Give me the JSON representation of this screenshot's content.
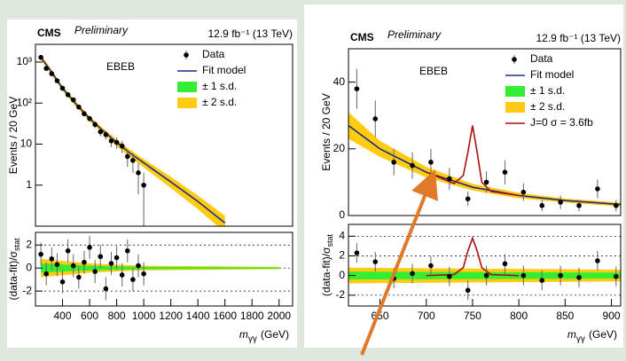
{
  "chart_data": [
    {
      "type": "scatter",
      "yscale": "log",
      "experiment": "CMS",
      "status": "Preliminary",
      "lumi": "12.9 fb⁻¹ (13 TeV)",
      "category": "EBEB",
      "ylabel": "Events / 20 GeV",
      "xlim": [
        200,
        2100
      ],
      "ylim": [
        0.1,
        2700
      ],
      "yticks": [
        1,
        10,
        {
          "value": 100,
          "label": "10²"
        },
        {
          "value": 1000,
          "label": "10³"
        }
      ],
      "legend": "upper right",
      "series": [
        {
          "name": "Data",
          "kind": "points",
          "color": "#000000",
          "x": [
            240,
            280,
            320,
            360,
            400,
            440,
            480,
            520,
            560,
            600,
            640,
            680,
            720,
            760,
            800,
            840,
            880,
            920,
            960,
            1000
          ],
          "values": [
            1300,
            700,
            520,
            350,
            230,
            160,
            120,
            80,
            55,
            42,
            30,
            20,
            17,
            12,
            11,
            9,
            5,
            4,
            2,
            1
          ],
          "errors": [
            36,
            26,
            23,
            19,
            15,
            13,
            11,
            9,
            7,
            6.5,
            5.5,
            4.5,
            4,
            3.5,
            3.3,
            3,
            2.2,
            2,
            1.4,
            1
          ]
        },
        {
          "name": "Fit model",
          "kind": "line",
          "color": "#1f2a8a",
          "x": [
            240,
            300,
            400,
            500,
            600,
            700,
            800,
            900,
            1000,
            1200,
            1400,
            1600
          ],
          "values": [
            1300,
            700,
            230,
            95,
            42,
            21,
            11,
            6.0,
            3.5,
            1.2,
            0.4,
            0.12
          ]
        },
        {
          "name": "± 1 s.d.",
          "kind": "band",
          "color": "#33ee33",
          "x": [
            240,
            300,
            400,
            500,
            600,
            700,
            800,
            900,
            1000,
            1200,
            1400,
            1600
          ],
          "lower": [
            1200,
            650,
            215,
            88,
            39,
            19.5,
            10,
            5.4,
            3.1,
            1.0,
            0.32,
            0.09
          ],
          "upper": [
            1400,
            750,
            245,
            102,
            45,
            22.5,
            12,
            6.6,
            3.9,
            1.4,
            0.48,
            0.15
          ]
        },
        {
          "name": "± 2 s.d.",
          "kind": "band",
          "color": "#ffcc11",
          "x": [
            240,
            300,
            400,
            500,
            600,
            700,
            800,
            900,
            1000,
            1200,
            1400,
            1600
          ],
          "lower": [
            1100,
            600,
            200,
            81,
            36,
            18,
            9,
            4.8,
            2.7,
            0.85,
            0.26,
            0.07
          ],
          "upper": [
            1500,
            800,
            260,
            109,
            48,
            24,
            13,
            7.2,
            4.3,
            1.6,
            0.56,
            0.18
          ]
        }
      ]
    },
    {
      "type": "scatter",
      "ylabel": "(data-fit)/σ",
      "ylabel_sub": "stat",
      "xlabel": "m",
      "xlabel_sub": "γγ",
      "xlabel_unit": "(GeV)",
      "xlim": [
        200,
        2100
      ],
      "xticks": [
        400,
        600,
        800,
        1000,
        1200,
        1400,
        1600,
        1800,
        2000
      ],
      "ylim": [
        -3.3,
        3.1
      ],
      "yticks": [
        -2,
        0,
        2
      ],
      "grid": true,
      "series": [
        {
          "kind": "band",
          "color": "#ffcc11",
          "x": [
            240,
            600,
            1000,
            2000
          ],
          "lower": [
            -0.8,
            -0.4,
            -0.2,
            -0.1
          ],
          "upper": [
            0.8,
            0.4,
            0.2,
            0.1
          ]
        },
        {
          "kind": "band",
          "color": "#33ee33",
          "x": [
            240,
            600,
            1000,
            2000
          ],
          "lower": [
            -0.4,
            -0.2,
            -0.1,
            -0.05
          ],
          "upper": [
            0.4,
            0.2,
            0.1,
            0.05
          ]
        },
        {
          "kind": "points",
          "color": "#000000",
          "x": [
            240,
            280,
            320,
            360,
            400,
            440,
            480,
            520,
            560,
            600,
            640,
            680,
            720,
            760,
            800,
            840,
            880,
            920,
            960,
            1000
          ],
          "values": [
            1.2,
            -0.5,
            0.8,
            0.3,
            -1.2,
            1.5,
            0.2,
            -0.8,
            0.5,
            1.8,
            -0.3,
            1.0,
            -1.8,
            0.4,
            0.9,
            -0.6,
            1.5,
            -1,
            0.2,
            -0.5
          ],
          "errors": [
            1,
            1,
            1,
            1,
            1,
            1,
            1,
            1,
            1,
            1,
            1,
            1,
            1,
            1,
            1,
            1,
            1,
            1,
            1,
            1
          ]
        }
      ]
    },
    {
      "type": "scatter",
      "experiment": "CMS",
      "status": "Preliminary",
      "lumi": "12.9 fb⁻¹ (13 TeV)",
      "category": "EBEB",
      "ylabel": "Events / 20 GeV",
      "xlim": [
        616,
        910
      ],
      "ylim": [
        0,
        50
      ],
      "yticks": [
        0,
        20,
        40
      ],
      "legend": "upper right",
      "series": [
        {
          "name": "Data",
          "kind": "points",
          "color": "#000000",
          "x": [
            625,
            645,
            665,
            685,
            705,
            725,
            745,
            765,
            785,
            805,
            825,
            845,
            865,
            885,
            905
          ],
          "values": [
            38,
            29,
            16,
            15,
            16,
            11,
            5,
            10,
            13,
            7,
            3,
            4,
            3,
            8,
            3
          ],
          "errors": [
            6,
            5.5,
            4,
            4,
            4,
            3.3,
            2.2,
            3.2,
            3.6,
            2.6,
            1.7,
            2,
            1.7,
            2.8,
            1.7
          ]
        },
        {
          "name": "Fit model",
          "kind": "line",
          "color": "#1f2a8a",
          "x": [
            616,
            650,
            700,
            750,
            800,
            850,
            910
          ],
          "values": [
            27,
            20,
            13,
            8.5,
            6,
            4.5,
            3.3
          ]
        },
        {
          "name": "± 1 s.d.",
          "kind": "band",
          "color": "#33ee33",
          "x": [
            616,
            650,
            700,
            750,
            800,
            850,
            910
          ],
          "lower": [
            25,
            18.8,
            12.2,
            8,
            5.6,
            4.2,
            3.0
          ],
          "upper": [
            29,
            21.2,
            13.8,
            9,
            6.4,
            4.8,
            3.6
          ]
        },
        {
          "name": "± 2 s.d.",
          "kind": "band",
          "color": "#ffcc11",
          "x": [
            616,
            650,
            700,
            750,
            800,
            850,
            910
          ],
          "lower": [
            23,
            17.6,
            11.4,
            7.5,
            5.2,
            3.9,
            2.7
          ],
          "upper": [
            31,
            22.4,
            14.6,
            9.5,
            6.8,
            5.1,
            3.9
          ]
        },
        {
          "name": "J=0 σ = 3.6fb",
          "kind": "line",
          "color": "#aa1111",
          "x": [
            700,
            730,
            740,
            745,
            750,
            755,
            760,
            770,
            800
          ],
          "values": [
            13,
            9.6,
            12,
            19,
            27,
            19,
            10,
            7.2,
            6
          ]
        }
      ]
    },
    {
      "type": "scatter",
      "ylabel": "(data-fit)/σ",
      "ylabel_sub": "stat",
      "xlabel": "m",
      "xlabel_sub": "γγ",
      "xlabel_unit": "(GeV)",
      "xlim": [
        616,
        910
      ],
      "xticks": [
        650,
        700,
        750,
        800,
        850,
        900
      ],
      "ylim": [
        -3.1,
        5.2
      ],
      "yticks": [
        -2,
        0,
        2,
        4
      ],
      "grid": true,
      "series": [
        {
          "kind": "band",
          "color": "#ffcc11",
          "x": [
            616,
            910
          ],
          "lower": [
            -0.8,
            -0.6
          ],
          "upper": [
            0.8,
            0.6
          ]
        },
        {
          "kind": "band",
          "color": "#33ee33",
          "x": [
            616,
            910
          ],
          "lower": [
            -0.4,
            -0.3
          ],
          "upper": [
            0.4,
            0.3
          ]
        },
        {
          "kind": "line",
          "color": "#aa1111",
          "x": [
            700,
            730,
            740,
            745,
            750,
            755,
            760,
            770,
            800
          ],
          "values": [
            0,
            0.1,
            0.8,
            2.5,
            3.8,
            2.5,
            0.8,
            0.1,
            0
          ]
        },
        {
          "kind": "points",
          "color": "#000000",
          "x": [
            625,
            645,
            665,
            685,
            705,
            725,
            745,
            765,
            785,
            805,
            825,
            845,
            865,
            885,
            905
          ],
          "values": [
            2.3,
            1.4,
            -0.3,
            0.2,
            1,
            -0.1,
            -1.5,
            0.0,
            1.2,
            0,
            -0.5,
            0,
            -0.2,
            1.5,
            -0.1
          ],
          "errors": [
            1,
            1,
            1,
            1,
            1,
            1,
            1,
            1,
            1,
            1,
            1,
            1,
            1,
            1,
            1
          ]
        }
      ]
    }
  ]
}
